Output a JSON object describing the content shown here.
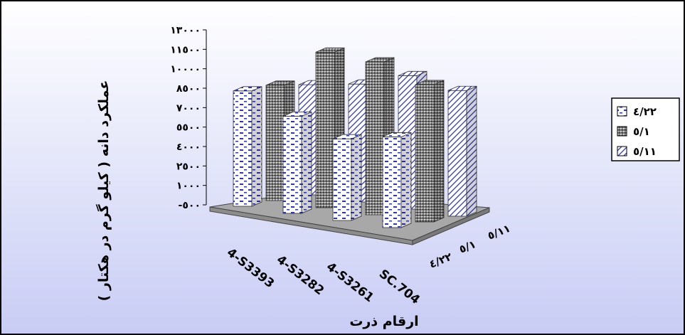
{
  "chart_data": {
    "type": "bar",
    "title": "",
    "xlabel": "ارقام ذرت",
    "ylabel": "عملکرد دانه ( کیلو گرم در هکتار )",
    "categories": [
      "4-S3393",
      "4-S3282",
      "4-S3261",
      "SC.704"
    ],
    "depth_labels": [
      "٤/٢٢",
      "٥/١",
      "٥/١١"
    ],
    "y_ticks": [
      "-٥٠٠",
      "١٠٠٠",
      "٢٥٠٠",
      "٤٠٠٠",
      "٥٥٠٠",
      "٧٠٠٠",
      "٨٥٠٠",
      "١٠٠٠٠",
      "١١٥٠٠",
      "١٣٠٠٠"
    ],
    "ylim": [
      -500,
      13000
    ],
    "series": [
      {
        "name": "٤/٢٢",
        "values": [
          8400,
          7000,
          5800,
          6500
        ],
        "pattern": "dash"
      },
      {
        "name": "٥/١",
        "values": [
          8400,
          11500,
          11300,
          10100
        ],
        "pattern": "dots"
      },
      {
        "name": "٥/١١",
        "values": [
          8000,
          8600,
          9800,
          9200
        ],
        "pattern": "diag"
      }
    ],
    "legend_position": "right",
    "grid": false,
    "colors": {
      "plot_bg_top": "#ffffff",
      "plot_bg_bottom": "#c8ccf4",
      "floor": "#a8a8a8",
      "bar_blue": "#2a35d8"
    }
  }
}
